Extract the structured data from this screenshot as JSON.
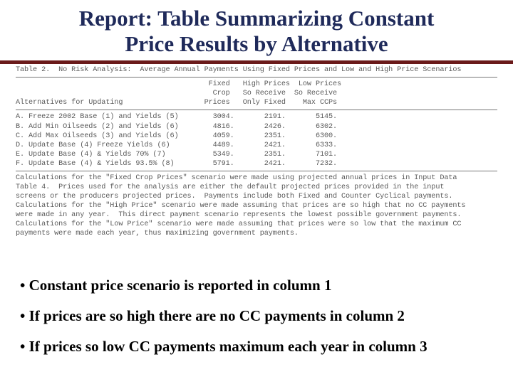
{
  "title_line1": "Report:  Table Summarizing Constant",
  "title_line2": "Price Results by Alternative",
  "table_caption": "Table 2.  No Risk Analysis:  Average Annual Payments Using Fixed Prices and Low and High Price Scenarios",
  "header": {
    "l1": "                                             Fixed   High Prices  Low Prices",
    "l2": "                                              Crop   So Receive  So Receive",
    "l3": "Alternatives for Updating                   Prices   Only Fixed    Max CCPs"
  },
  "rows": [
    "A. Freeze 2002 Base (1) and Yields (5)        3004.       2191.       5145.",
    "B. Add Min Oilseeds (2) and Yields (6)        4816.       2426.       6302.",
    "C. Add Max Oilseeds (3) and Yields (6)        4059.       2351.       6300.",
    "D. Update Base (4) Freeze Yields (6)          4489.       2421.       6333.",
    "E. Update Base (4) & Yields 70% (7)           5349.       2351.       7101.",
    "F. Update Base (4) & Yields 93.5% (8)         5791.       2421.       7232."
  ],
  "footnote": [
    "Calculations for the \"Fixed Crop Prices\" scenario were made using projected annual prices in Input Data",
    "Table 4.  Prices used for the analysis are either the default projected prices provided in the input",
    "screens or the producers projected prices.  Payments include both Fixed and Counter Cyclical payments.",
    "Calculations for the \"High Price\" scenario were made assuming that prices are so high that no CC payments",
    "were made in any year.  This direct payment scenario represents the lowest possible government payments.",
    "Calculations for the \"Low Price\" scenario were made assuming that prices were so low that the maximum CC",
    "payments were made each year, thus maximizing government payments."
  ],
  "bullets": [
    "• Constant price scenario is reported in column 1",
    "• If prices are so high there are no CC payments in column 2",
    "• If prices so low CC payments maximum each year in column 3"
  ],
  "colors": {
    "title": "#1f2a5a",
    "rule": "#6a1a1a",
    "mono": "#5a5a5a"
  }
}
